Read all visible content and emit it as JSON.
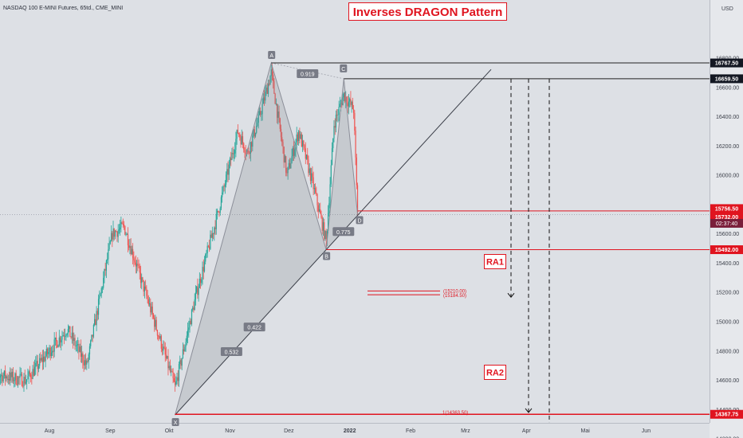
{
  "header": {
    "symbol": "NASDAQ 100 E-MINI Futures, 65td., CME_MINI",
    "currency": "USD",
    "title": "Inverses DRAGON Pattern"
  },
  "chart_data": {
    "type": "candlestick",
    "title": "Inverses DRAGON Pattern",
    "xlabel": "",
    "ylabel": "",
    "ylim": [
      14150,
      17000
    ],
    "x_tick_labels": [
      "Aug",
      "Sep",
      "Okt",
      "Nov",
      "Dez",
      "2022",
      "Feb",
      "Mrz",
      "Apr",
      "Mai",
      "Jun"
    ],
    "y_tick_values": [
      14200,
      14400,
      14600,
      14800,
      15000,
      15200,
      15400,
      15600,
      16000,
      16200,
      16400,
      16600,
      16800
    ],
    "y_tick_labels": [
      "14200.00",
      "14400.00",
      "14600.00",
      "14800.00",
      "15000.00",
      "15200.00",
      "15400.00",
      "15600.00",
      "16000.00",
      "16200.00",
      "16400.00",
      "16600.00",
      "16800.00"
    ],
    "price_tags": [
      {
        "value": 16767.5,
        "label": "16767.50",
        "style": "black"
      },
      {
        "value": 16659.5,
        "label": "16659.50",
        "style": "black"
      },
      {
        "value": 15756.5,
        "label": "15756.50",
        "style": "red"
      },
      {
        "value": 15732.0,
        "label": "15732.00",
        "style": "red"
      },
      {
        "value": 15492.0,
        "label": "15492.00",
        "style": "red"
      },
      {
        "value": 14367.75,
        "label": "14367.75",
        "style": "red"
      }
    ],
    "countdown": "02:37:40",
    "pattern_points": [
      {
        "label": "X",
        "date": "2021-10-04",
        "price": 14363.5
      },
      {
        "label": "A",
        "date": "2021-11-22",
        "price": 16767.5
      },
      {
        "label": "B",
        "date": "2021-12-20",
        "price": 15492.0
      },
      {
        "label": "C",
        "date": "2021-12-29",
        "price": 16659.5
      },
      {
        "label": "D",
        "date": "2022-01-05",
        "price": 15732.0
      }
    ],
    "ratios": [
      "0.919",
      "0.775",
      "0.422",
      "0.532"
    ],
    "targets": [
      {
        "label": "RA1",
        "levels": [
          "(15210.00)",
          "(15184.50)"
        ]
      },
      {
        "label": "RA2",
        "levels": [
          "1(14363.50)"
        ]
      }
    ]
  }
}
